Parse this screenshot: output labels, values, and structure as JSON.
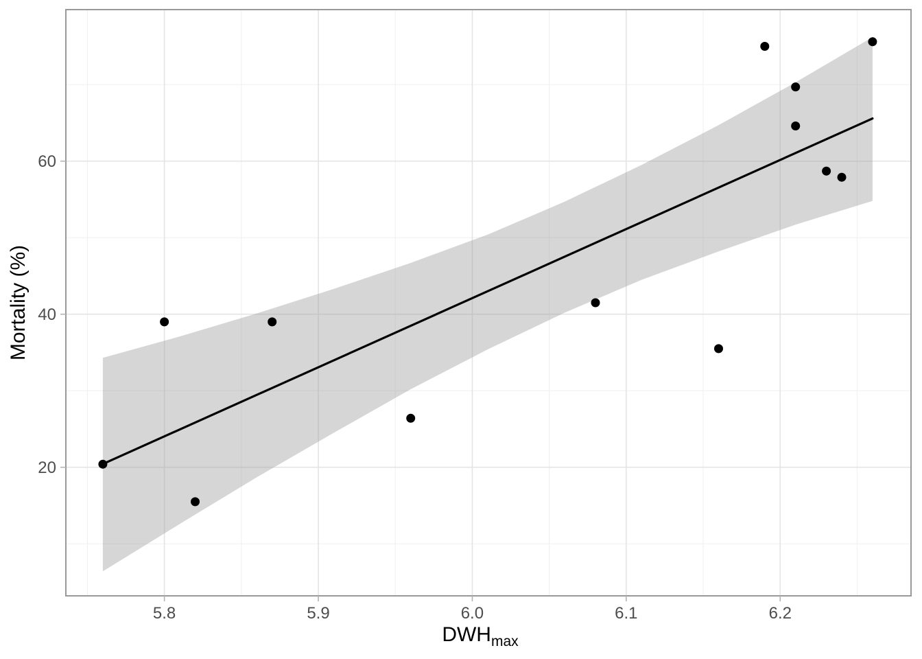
{
  "chart_data": {
    "type": "scatter",
    "title": "",
    "xlabel": "DWH",
    "xlabel_sub": "max",
    "ylabel": "Mortality (%)",
    "x_domain": [
      5.736,
      6.285
    ],
    "y_domain": [
      3.2,
      79.8
    ],
    "x_ticks": {
      "values": [
        5.8,
        5.9,
        6.0,
        6.1,
        6.2
      ],
      "labels": [
        "5.8",
        "5.9",
        "6.0",
        "6.1",
        "6.2"
      ],
      "minor": [
        5.75,
        5.85,
        5.95,
        6.05,
        6.15,
        6.25
      ]
    },
    "y_ticks": {
      "values": [
        20,
        40,
        60
      ],
      "labels": [
        "20",
        "40",
        "60"
      ],
      "minor": [
        10,
        30,
        50,
        70
      ]
    },
    "grid": true,
    "legend": "none",
    "points": [
      {
        "x": 5.76,
        "y": 20.4
      },
      {
        "x": 5.8,
        "y": 39.0
      },
      {
        "x": 5.82,
        "y": 15.5
      },
      {
        "x": 5.87,
        "y": 39.0
      },
      {
        "x": 5.96,
        "y": 26.4
      },
      {
        "x": 6.08,
        "y": 41.5
      },
      {
        "x": 6.16,
        "y": 35.5
      },
      {
        "x": 6.19,
        "y": 75.0
      },
      {
        "x": 6.21,
        "y": 69.7
      },
      {
        "x": 6.21,
        "y": 64.6
      },
      {
        "x": 6.23,
        "y": 58.7
      },
      {
        "x": 6.24,
        "y": 57.9
      },
      {
        "x": 6.26,
        "y": 75.6
      }
    ],
    "trend_line": {
      "type": "linear",
      "slope": 90.3,
      "intercept": -499.7,
      "x_start": 5.76,
      "x_end": 6.26
    },
    "ci_band": [
      {
        "x": 5.76,
        "lower": 6.4,
        "upper": 34.3
      },
      {
        "x": 5.81,
        "lower": 12.6,
        "upper": 37.1
      },
      {
        "x": 5.86,
        "lower": 18.7,
        "upper": 40.1
      },
      {
        "x": 5.91,
        "lower": 24.5,
        "upper": 43.3
      },
      {
        "x": 5.96,
        "lower": 30.2,
        "upper": 46.7
      },
      {
        "x": 6.01,
        "lower": 35.4,
        "upper": 50.4
      },
      {
        "x": 6.06,
        "lower": 40.2,
        "upper": 54.7
      },
      {
        "x": 6.11,
        "lower": 44.5,
        "upper": 59.5
      },
      {
        "x": 6.16,
        "lower": 48.2,
        "upper": 64.7
      },
      {
        "x": 6.21,
        "lower": 51.7,
        "upper": 70.3
      },
      {
        "x": 6.26,
        "lower": 54.8,
        "upper": 76.2
      }
    ],
    "colors": {
      "point": "#000000",
      "trend_line": "#000000",
      "ci_band": "rgba(153,153,153,0.40)",
      "grid_major": "#e4e4e4",
      "grid_minor": "#f0f0f0",
      "panel_border": "#999999",
      "tick_mark": "#b3b3b3",
      "tick_label": "#4d4d4d",
      "axis_title": "#000000",
      "background": "#ffffff"
    }
  }
}
